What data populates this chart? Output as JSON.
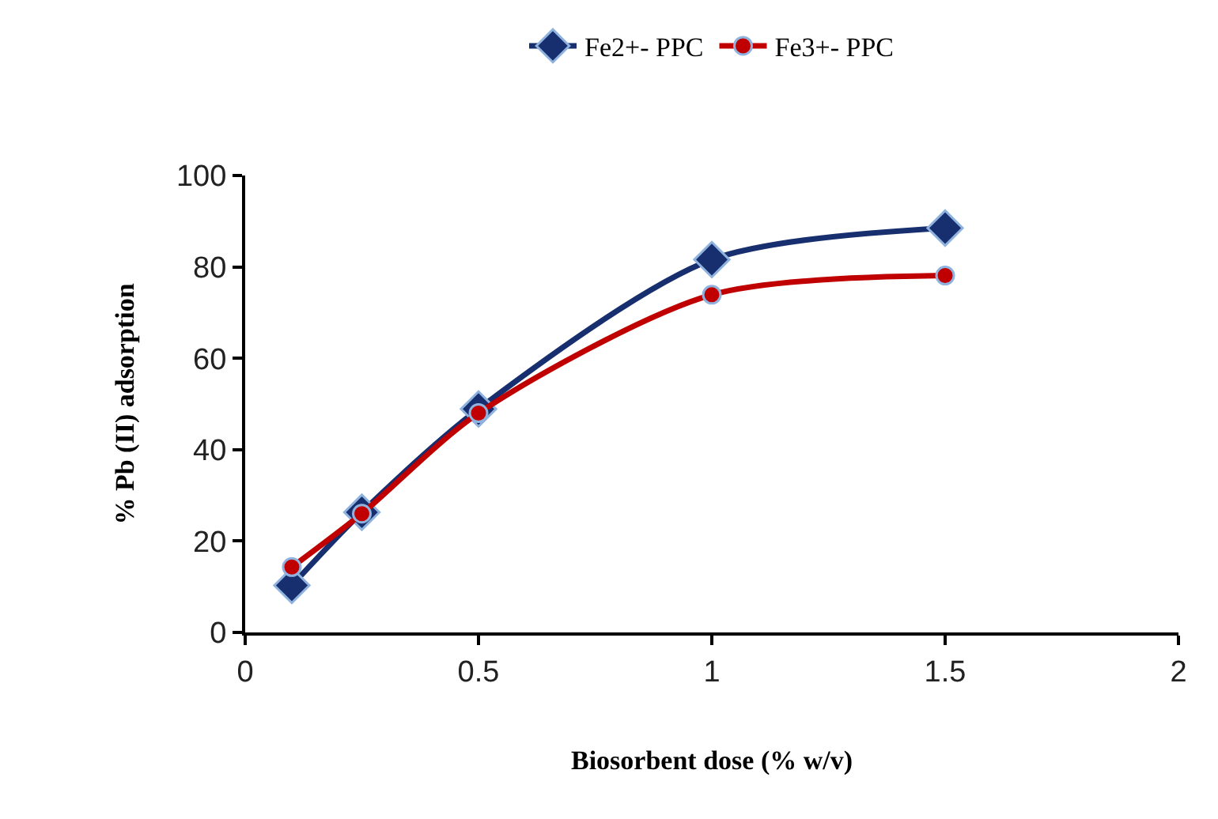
{
  "chart_data": {
    "type": "line",
    "xlabel": "Biosorbent dose (% w/v)",
    "ylabel": "% Pb (II) adsorption",
    "xlim": [
      0,
      2
    ],
    "xticks": [
      0,
      0.5,
      1,
      1.5,
      2
    ],
    "ylim": [
      0,
      100
    ],
    "yticks": [
      0,
      20,
      40,
      60,
      80,
      100
    ],
    "grid": false,
    "legend": "top",
    "series": [
      {
        "name": "Fe2+- PPC",
        "color": "#172f6e",
        "marker": "diamond",
        "x": [
          0.1,
          0.25,
          0.5,
          1,
          1.5
        ],
        "values": [
          10.3,
          26.3,
          48.9,
          81.6,
          88.5
        ]
      },
      {
        "name": "Fe3+- PPC",
        "color": "#c00000",
        "marker": "circle",
        "x": [
          0.1,
          0.25,
          0.5,
          1,
          1.5
        ],
        "values": [
          14.3,
          26,
          48,
          73.9,
          78.1
        ]
      }
    ]
  }
}
